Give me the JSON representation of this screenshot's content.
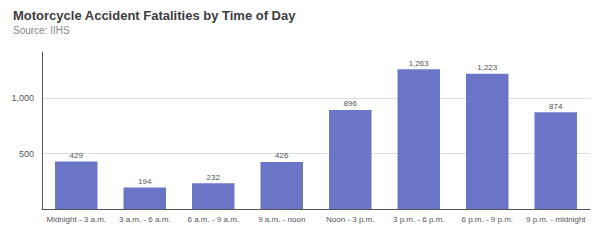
{
  "chart_data": {
    "type": "bar",
    "title": "Motorcycle Accident Fatalities by Time of Day",
    "subtitle": "Source: IIHS",
    "categories": [
      "Midnight - 3 a.m.",
      "3 a.m. - 6 a.m.",
      "6 a.m. - 9 a.m.",
      "9 a.m. - noon",
      "Noon - 3 p.m.",
      "3 p.m. - 6 p.m.",
      "6 p.m. - 9 p.m.",
      "9 p.m. - midnight"
    ],
    "values": [
      429,
      194,
      232,
      426,
      896,
      1263,
      1223,
      874
    ],
    "value_labels": [
      "429",
      "194",
      "232",
      "426",
      "896",
      "1,263",
      "1,223",
      "874"
    ],
    "data_labels": true,
    "color": "#6b75c8",
    "ylim": [
      0,
      1420
    ],
    "yticks": [
      500,
      {
        "value": 1000,
        "label": "1,000"
      }
    ],
    "grid": true
  }
}
